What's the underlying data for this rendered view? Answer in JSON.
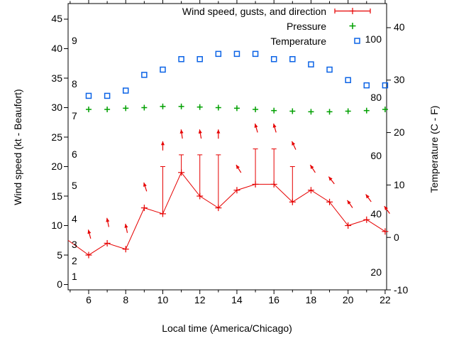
{
  "figure": {
    "xlabel": "Local time (America/Chicago)",
    "ylabel_left": "Wind speed (kt - Beaufort)",
    "ylabel_right": "Temperature (C - F)"
  },
  "colors": {
    "wind": "#e60000",
    "pressure": "#00a000",
    "temperature": "#0b63e6",
    "axis": "#000000",
    "background": "#ffffff"
  },
  "legend": {
    "entries": [
      {
        "label": "Wind speed, gusts, and direction",
        "marker": "errorbar-line-plus",
        "color": "#e60000"
      },
      {
        "label": "Pressure",
        "marker": "plus",
        "color": "#00a000"
      },
      {
        "label": "Temperature",
        "marker": "open-square",
        "color": "#0b63e6"
      }
    ]
  },
  "chart_data": {
    "type": "line",
    "title": "",
    "xlabel": "Local time (America/Chicago)",
    "ylabel": "Wind speed (kt - Beaufort)",
    "y2label": "Temperature (C - F)",
    "grid": false,
    "legend_position": "top-right-inside",
    "x": [
      6,
      7,
      8,
      9,
      10,
      11,
      12,
      13,
      14,
      15,
      16,
      17,
      18,
      19,
      20,
      21,
      22
    ],
    "x_range": [
      4.89,
      22.08
    ],
    "x_ticks": [
      6,
      8,
      10,
      12,
      14,
      16,
      18,
      20,
      22
    ],
    "x_minor_ticks": [
      5,
      7,
      9,
      11,
      13,
      15,
      17,
      19,
      21
    ],
    "y_left_range": [
      -0.9,
      47.65
    ],
    "y_left_ticks": [
      0,
      5,
      10,
      15,
      20,
      25,
      30,
      35,
      40,
      45
    ],
    "beaufort_labels": [
      {
        "b": "1",
        "kt": 1.3
      },
      {
        "b": "2",
        "kt": 4.0
      },
      {
        "b": "3",
        "kt": 6.7
      },
      {
        "b": "4",
        "kt": 11.1
      },
      {
        "b": "5",
        "kt": 16.7
      },
      {
        "b": "6",
        "kt": 22.0
      },
      {
        "b": "7",
        "kt": 28.6
      },
      {
        "b": "8",
        "kt": 34.0
      },
      {
        "b": "9",
        "kt": 41.3
      }
    ],
    "y_right_range": [
      -10,
      44.6
    ],
    "y_right_ticks": [
      -10,
      0,
      10,
      20,
      30,
      40
    ],
    "fahrenheit_labels": [
      {
        "f": "20",
        "c": -6.7
      },
      {
        "f": "40",
        "c": 4.4
      },
      {
        "f": "60",
        "c": 15.6
      },
      {
        "f": "80",
        "c": 26.7
      },
      {
        "f": "100",
        "c": 37.8
      }
    ],
    "series": [
      {
        "name": "Wind speed, gusts, and direction",
        "type": "errorbar-line",
        "axis": "left",
        "color": "#e60000",
        "units": "kt",
        "entry_point": {
          "x": 4.89,
          "kt": 7.5
        },
        "values": [
          5,
          7,
          6,
          13,
          12,
          19,
          15,
          13,
          16,
          17,
          17,
          14,
          16,
          14,
          10,
          11,
          9
        ],
        "gusts": [
          null,
          null,
          null,
          null,
          20,
          22,
          22,
          22,
          null,
          23,
          23,
          20,
          null,
          null,
          null,
          null,
          null
        ],
        "direction_tilt_deg": [
          -15,
          -12,
          -12,
          -18,
          0,
          -8,
          -10,
          0,
          -32,
          -16,
          -16,
          -25,
          -33,
          -38,
          -35,
          -36,
          -36
        ]
      },
      {
        "name": "Pressure",
        "type": "scatter-plus",
        "axis": "left",
        "color": "#00a000",
        "units": "inHg",
        "values": [
          29.7,
          29.7,
          29.9,
          30.0,
          30.2,
          30.2,
          30.1,
          30.0,
          29.9,
          29.7,
          29.5,
          29.4,
          29.3,
          29.3,
          29.4,
          29.5,
          29.7
        ]
      },
      {
        "name": "Temperature",
        "type": "scatter-square",
        "axis": "right",
        "color": "#0b63e6",
        "units": "C",
        "values": [
          27,
          27,
          28,
          31,
          32,
          34,
          34,
          35,
          35,
          35,
          34,
          34,
          33,
          32,
          30,
          29,
          29
        ]
      }
    ]
  }
}
